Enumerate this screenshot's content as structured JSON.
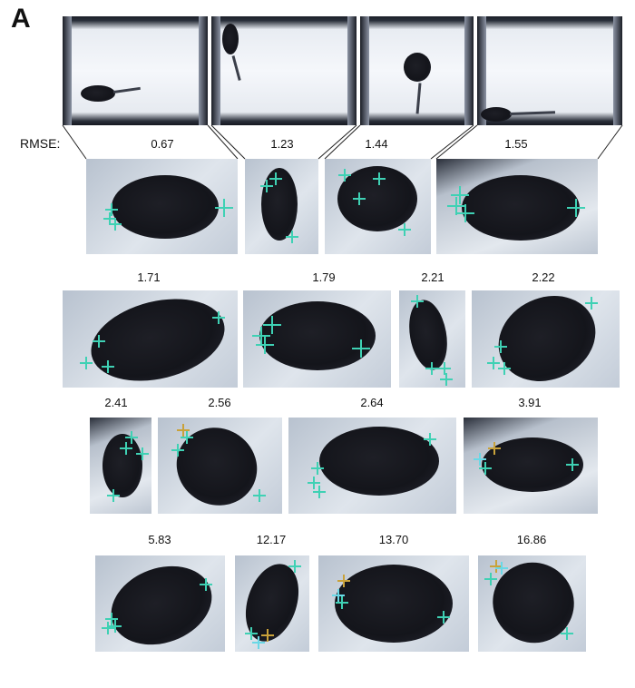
{
  "panel_letter": "A",
  "rmse_label": "RMSE:",
  "values": [
    "0.67",
    "1.23",
    "1.44",
    "1.55",
    "1.71",
    "1.79",
    "2.21",
    "2.22",
    "2.41",
    "2.56",
    "2.64",
    "3.91",
    "5.83",
    "12.17",
    "13.70",
    "16.86"
  ],
  "colors": {
    "marker_green": "#3fd1b4",
    "marker_cyan": "#6ad8e6",
    "marker_orange": "#c9a23a",
    "mouse": "#16171d"
  }
}
